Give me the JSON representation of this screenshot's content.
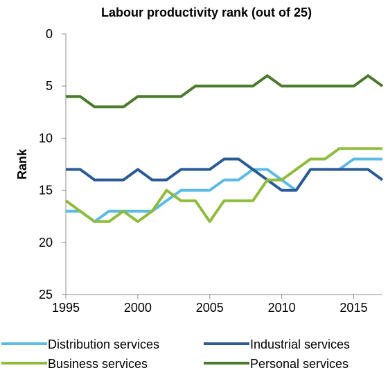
{
  "chart_data": {
    "type": "line",
    "title": "Labour productivity rank (out of 25)",
    "xlabel": "",
    "ylabel": "Rank",
    "x": [
      1995,
      1996,
      1997,
      1998,
      1999,
      2000,
      2001,
      2002,
      2003,
      2004,
      2005,
      2006,
      2007,
      2008,
      2009,
      2010,
      2011,
      2012,
      2013,
      2014,
      2015,
      2016,
      2017
    ],
    "xlim": [
      1995,
      2017
    ],
    "ylim": [
      0,
      25
    ],
    "y_inverted": true,
    "x_ticks": [
      "1995",
      "2000",
      "2005",
      "2010",
      "2015"
    ],
    "y_ticks": [
      "0",
      "5",
      "10",
      "15",
      "20",
      "25"
    ],
    "grid": false,
    "legend_position": "bottom",
    "series": [
      {
        "name": "Distribution services",
        "color": "#5bbbe6",
        "values": [
          17,
          17,
          18,
          17,
          17,
          17,
          17,
          16,
          15,
          15,
          15,
          14,
          14,
          13,
          13,
          14,
          15,
          13,
          13,
          13,
          12,
          12,
          12
        ]
      },
      {
        "name": "Industrial services",
        "color": "#2a5a96",
        "values": [
          13,
          13,
          14,
          14,
          14,
          13,
          14,
          14,
          13,
          13,
          13,
          12,
          12,
          13,
          14,
          15,
          15,
          13,
          13,
          13,
          13,
          13,
          14
        ]
      },
      {
        "name": "Business services",
        "color": "#8fbc3c",
        "values": [
          16,
          17,
          18,
          18,
          17,
          18,
          17,
          15,
          16,
          16,
          18,
          16,
          16,
          16,
          14,
          14,
          13,
          12,
          12,
          11,
          11,
          11,
          11
        ]
      },
      {
        "name": "Personal services",
        "color": "#4a7a2a",
        "values": [
          6,
          6,
          7,
          7,
          7,
          6,
          6,
          6,
          6,
          5,
          5,
          5,
          5,
          5,
          4,
          5,
          5,
          5,
          5,
          5,
          5,
          4,
          5
        ]
      }
    ]
  }
}
